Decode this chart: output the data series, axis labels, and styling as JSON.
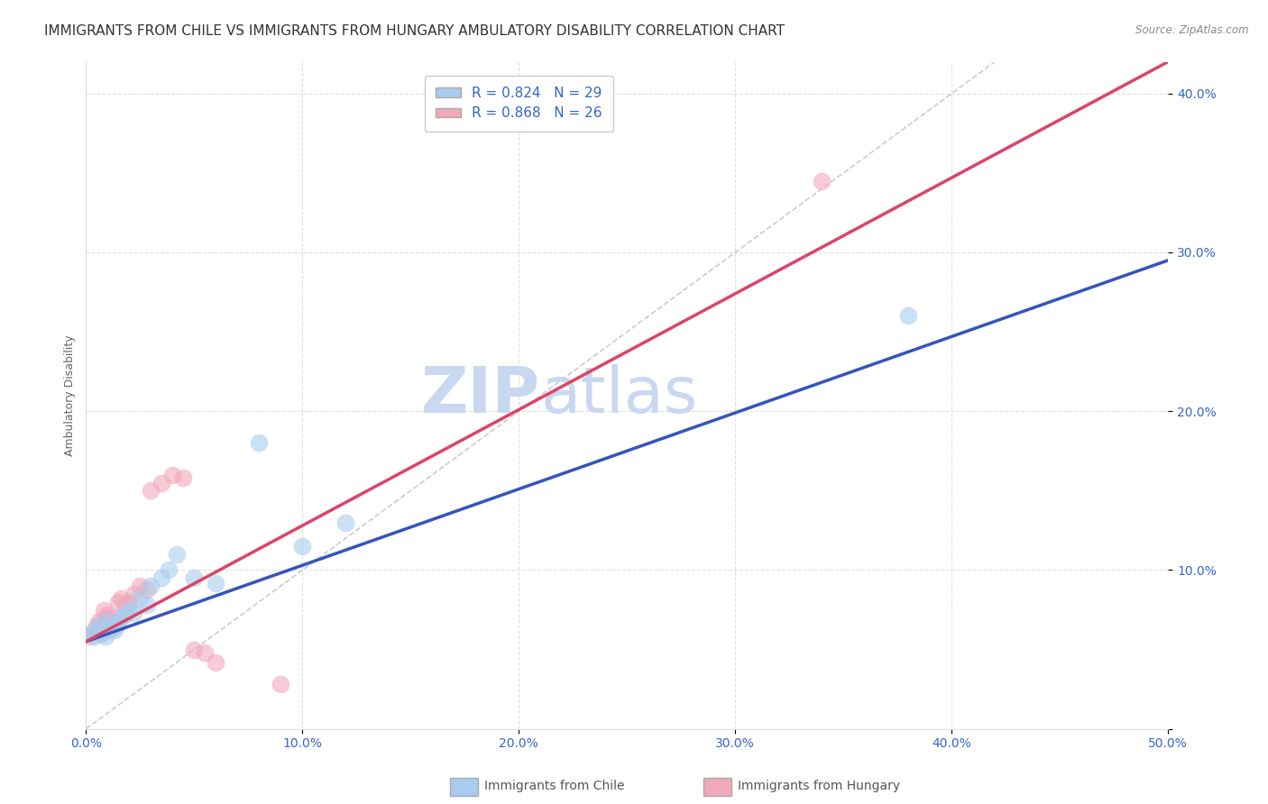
{
  "title": "IMMIGRANTS FROM CHILE VS IMMIGRANTS FROM HUNGARY AMBULATORY DISABILITY CORRELATION CHART",
  "source": "Source: ZipAtlas.com",
  "ylabel": "Ambulatory Disability",
  "xlabel": "",
  "xlim": [
    0.0,
    0.5
  ],
  "ylim": [
    0.0,
    0.42
  ],
  "xticks": [
    0.0,
    0.1,
    0.2,
    0.3,
    0.4,
    0.5
  ],
  "yticks": [
    0.0,
    0.1,
    0.2,
    0.3,
    0.4
  ],
  "xticklabels": [
    "0.0%",
    "10.0%",
    "20.0%",
    "30.0%",
    "40.0%",
    "50.0%"
  ],
  "yticklabels": [
    "",
    "10.0%",
    "20.0%",
    "30.0%",
    "40.0%"
  ],
  "chile_color": "#A8CCEE",
  "hungary_color": "#F0A8BC",
  "chile_line_color": "#3355BB",
  "hungary_line_color": "#DD4466",
  "diag_color": "#CCCCCC",
  "R_chile": 0.824,
  "N_chile": 29,
  "R_hungary": 0.868,
  "N_hungary": 26,
  "chile_scatter_x": [
    0.002,
    0.004,
    0.005,
    0.006,
    0.007,
    0.008,
    0.009,
    0.01,
    0.011,
    0.012,
    0.013,
    0.014,
    0.015,
    0.016,
    0.018,
    0.02,
    0.022,
    0.025,
    0.028,
    0.03,
    0.035,
    0.038,
    0.042,
    0.05,
    0.06,
    0.08,
    0.1,
    0.12,
    0.38
  ],
  "chile_scatter_y": [
    0.06,
    0.058,
    0.062,
    0.065,
    0.06,
    0.063,
    0.058,
    0.068,
    0.062,
    0.064,
    0.062,
    0.065,
    0.067,
    0.07,
    0.072,
    0.075,
    0.073,
    0.082,
    0.078,
    0.09,
    0.095,
    0.1,
    0.11,
    0.095,
    0.092,
    0.18,
    0.115,
    0.13,
    0.26
  ],
  "hungary_scatter_x": [
    0.002,
    0.004,
    0.005,
    0.006,
    0.007,
    0.008,
    0.009,
    0.01,
    0.012,
    0.014,
    0.015,
    0.016,
    0.018,
    0.02,
    0.022,
    0.025,
    0.028,
    0.03,
    0.035,
    0.04,
    0.045,
    0.05,
    0.055,
    0.06,
    0.09,
    0.34
  ],
  "hungary_scatter_y": [
    0.058,
    0.062,
    0.065,
    0.068,
    0.06,
    0.075,
    0.07,
    0.072,
    0.068,
    0.07,
    0.08,
    0.082,
    0.078,
    0.08,
    0.085,
    0.09,
    0.088,
    0.15,
    0.155,
    0.16,
    0.158,
    0.05,
    0.048,
    0.042,
    0.028,
    0.345
  ],
  "chile_line_x0": 0.0,
  "chile_line_y0": 0.055,
  "chile_line_x1": 0.5,
  "chile_line_y1": 0.295,
  "hungary_line_x0": 0.0,
  "hungary_line_y0": 0.055,
  "hungary_line_x1": 0.5,
  "hungary_line_y1": 0.42,
  "background_color": "#ffffff",
  "grid_color": "#DDDDDD",
  "title_fontsize": 11,
  "axis_label_fontsize": 9,
  "tick_fontsize": 10,
  "legend_fontsize": 11,
  "watermark_zip": "ZIP",
  "watermark_atlas": "atlas",
  "watermark_color_zip": "#C8D8F0",
  "watermark_color_atlas": "#C8D8F0",
  "watermark_fontsize": 52
}
